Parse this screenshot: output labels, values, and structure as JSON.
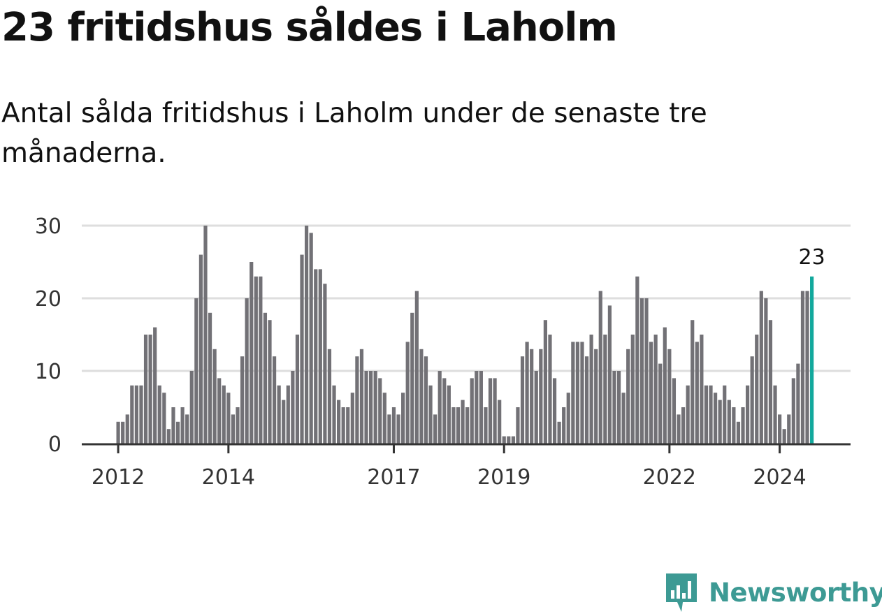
{
  "title": "23 fritidshus såldes i Laholm",
  "subtitle": "Antal sålda fritidshus i Laholm under de senaste tre månaderna.",
  "brand": "Newsworthy",
  "colors": {
    "bar": "#727176",
    "highlight": "#12a89c",
    "grid": "#dedede",
    "axis": "#333333",
    "brand": "#3d9a94"
  },
  "chart_data": {
    "type": "bar",
    "title": "23 fritidshus såldes i Laholm",
    "xlabel": "",
    "ylabel": "",
    "ylim": [
      0,
      30
    ],
    "yticks": [
      0,
      10,
      20,
      30
    ],
    "xtick_labels": [
      "2012",
      "2014",
      "2017",
      "2019",
      "2022",
      "2024"
    ],
    "grid": true,
    "highlight_label": "23",
    "series": [
      {
        "values": [
          3,
          3,
          4,
          8,
          8,
          8,
          15,
          15,
          16,
          8,
          7,
          2,
          5,
          3,
          5,
          4,
          10,
          20,
          26,
          30,
          18,
          13,
          9,
          8,
          7,
          4,
          5,
          12,
          20,
          25,
          23,
          23,
          18,
          17,
          12,
          8,
          6,
          8,
          10,
          15,
          26,
          30,
          29,
          24,
          24,
          22,
          13,
          8,
          6,
          5,
          5,
          7,
          12,
          13,
          10,
          10,
          10,
          9,
          7,
          4,
          5,
          4,
          7,
          14,
          18,
          21,
          13,
          12,
          8,
          4,
          10,
          9,
          8,
          5,
          5,
          6,
          5,
          9,
          10,
          10,
          5,
          9,
          9,
          6,
          1,
          1,
          1,
          5,
          12,
          14,
          13,
          10,
          13,
          17,
          15,
          9,
          3,
          5,
          7,
          14,
          14,
          14,
          12,
          15,
          13,
          21,
          15,
          19,
          10,
          10,
          7,
          13,
          15,
          23,
          20,
          20,
          14,
          15,
          11,
          16,
          13,
          9,
          4,
          5,
          8,
          17,
          14,
          15,
          8,
          8,
          7,
          6,
          8,
          6,
          5,
          3,
          5,
          8,
          12,
          15,
          21,
          20,
          17,
          8,
          4,
          2,
          4,
          9,
          11,
          21,
          21,
          23
        ]
      }
    ]
  }
}
